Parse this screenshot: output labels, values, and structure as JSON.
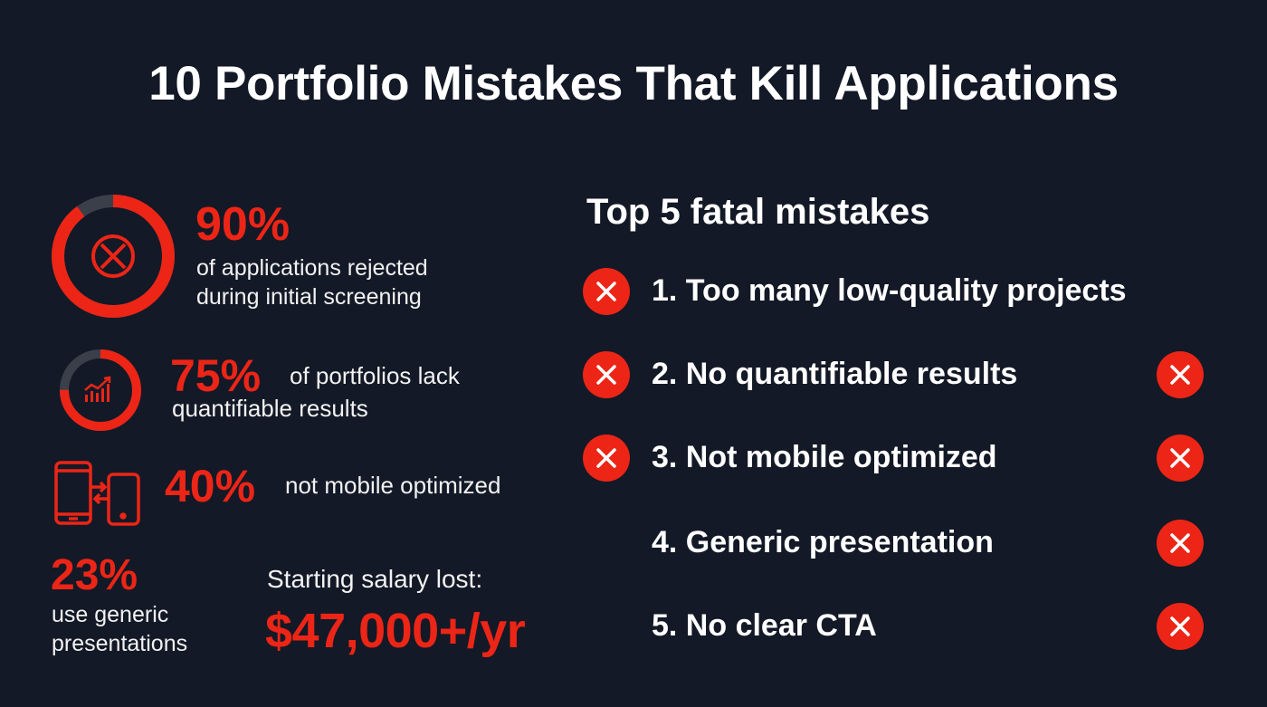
{
  "title": "10 Portfolio Mistakes That Kill Applications",
  "colors": {
    "background": "#131926",
    "accent": "#ec2517",
    "ring_track": "#3a3f4a",
    "text": "#ffffff"
  },
  "stats": [
    {
      "value": "90%",
      "percent": 90,
      "text": [
        "of applications rejected",
        "during initial screening"
      ],
      "icon": "x-circle-icon"
    },
    {
      "value": "75%",
      "percent": 75,
      "text": [
        "of portfolios lack",
        "quantifiable results"
      ],
      "icon": "bar-chart-growth-icon"
    },
    {
      "value": "40%",
      "text": [
        "not mobile optimized"
      ],
      "icon": "phones-transfer-icon"
    },
    {
      "value": "23%",
      "text": [
        "use generic",
        "presentations"
      ]
    }
  ],
  "salary": {
    "label": "Starting salary lost:",
    "value": "$47,000+/yr"
  },
  "mistakes": {
    "title": "Top 5 fatal mistakes",
    "items": [
      {
        "label": "1. Too many low-quality projects",
        "left_icon": true,
        "right_icon": false
      },
      {
        "label": "2. No quantifiable results",
        "left_icon": true,
        "right_icon": true
      },
      {
        "label": "3. Not mobile optimized",
        "left_icon": true,
        "right_icon": true
      },
      {
        "label": "4. Generic presentation",
        "left_icon": false,
        "right_icon": true
      },
      {
        "label": "5. No clear CTA",
        "left_icon": false,
        "right_icon": true
      }
    ]
  }
}
